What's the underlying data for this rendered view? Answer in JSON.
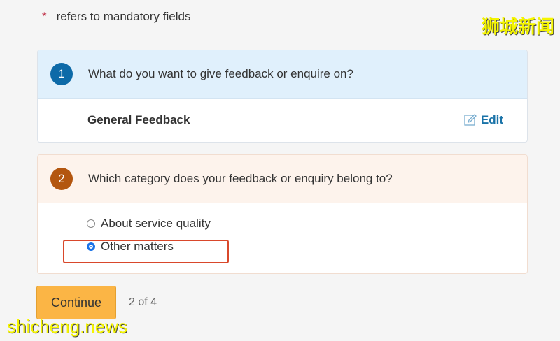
{
  "mandatory_note": {
    "star": "*",
    "text": "refers to mandatory fields"
  },
  "watermarks": {
    "top": "狮城新闻",
    "bottom": "shicheng.news"
  },
  "step1": {
    "number": "1",
    "question": "What do you want to give feedback or enquire on?",
    "answer": "General Feedback",
    "edit_label": "Edit"
  },
  "step2": {
    "number": "2",
    "question": "Which category does your feedback or enquiry belong to?",
    "options": [
      {
        "label": "About service quality",
        "selected": false
      },
      {
        "label": "Other matters",
        "selected": true
      }
    ]
  },
  "continue_label": "Continue",
  "progress": "2 of 4"
}
